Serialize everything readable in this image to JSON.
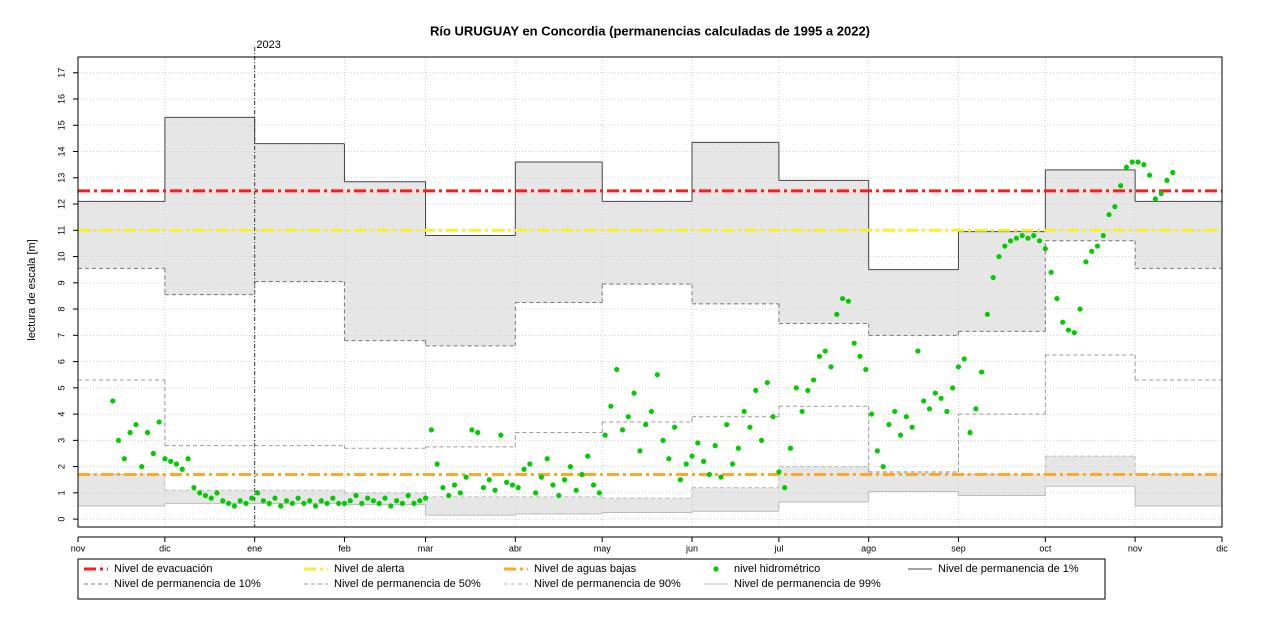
{
  "chart_data": {
    "type": "step",
    "title": "Río URUGUAY en Concordia (permanencias calculadas de 1995 a 2022)",
    "y_label": "lectura de escala [m]",
    "xlim": [
      0,
      395
    ],
    "ylim": [
      -0.3,
      17.6
    ],
    "xticks": [
      {
        "value": 0,
        "label": "nov"
      },
      {
        "value": 30,
        "label": "dic"
      },
      {
        "value": 61,
        "label": "ene"
      },
      {
        "value": 92,
        "label": "feb"
      },
      {
        "value": 120,
        "label": "mar"
      },
      {
        "value": 151,
        "label": "abr"
      },
      {
        "value": 181,
        "label": "may"
      },
      {
        "value": 212,
        "label": "jun"
      },
      {
        "value": 242,
        "label": "jul"
      },
      {
        "value": 273,
        "label": "ago"
      },
      {
        "value": 304,
        "label": "sep"
      },
      {
        "value": 334,
        "label": "oct"
      },
      {
        "value": 365,
        "label": "nov"
      },
      {
        "value": 395,
        "label": "dic"
      }
    ],
    "yticks": [
      0,
      1,
      2,
      3,
      4,
      5,
      6,
      7,
      8,
      9,
      10,
      11,
      12,
      13,
      14,
      15,
      16,
      17
    ],
    "grid": true,
    "vlines": [
      {
        "x": 61,
        "label": "2023"
      }
    ],
    "band_color": "#e6e6e6",
    "bands": [
      [
        4,
        5
      ],
      [
        7,
        8
      ]
    ],
    "series": [
      {
        "name": "Nivel de evacuación",
        "kind": "hline",
        "dash": "dashdot",
        "color": "#ff1a1a",
        "values": [
          12.5
        ]
      },
      {
        "name": "Nivel de alerta",
        "kind": "hline",
        "dash": "dashdot",
        "color": "#f5f032",
        "values": [
          11
        ]
      },
      {
        "name": "Nivel de aguas bajas",
        "kind": "hline",
        "dash": "dashdot",
        "color": "#ffa726",
        "values": [
          1.7
        ]
      },
      {
        "name": "nivel hidrométrico",
        "kind": "points",
        "color": "#00cc00",
        "x": [
          12,
          14,
          16,
          18,
          20,
          22,
          24,
          26,
          28,
          30,
          32,
          34,
          36,
          38,
          40,
          42,
          44,
          46,
          48,
          50,
          52,
          54,
          56,
          58,
          60,
          62,
          64,
          66,
          68,
          70,
          72,
          74,
          76,
          78,
          80,
          82,
          84,
          86,
          88,
          90,
          92,
          94,
          96,
          98,
          100,
          102,
          104,
          106,
          108,
          110,
          112,
          114,
          116,
          118,
          120,
          122,
          124,
          126,
          128,
          130,
          132,
          134,
          136,
          138,
          140,
          142,
          144,
          146,
          148,
          150,
          152,
          154,
          156,
          158,
          160,
          162,
          164,
          166,
          168,
          170,
          172,
          174,
          176,
          178,
          180,
          182,
          184,
          186,
          188,
          190,
          192,
          194,
          196,
          198,
          200,
          202,
          204,
          206,
          208,
          210,
          212,
          214,
          216,
          218,
          220,
          222,
          224,
          226,
          228,
          230,
          232,
          234,
          236,
          238,
          240,
          242,
          244,
          246,
          248,
          250,
          252,
          254,
          256,
          258,
          260,
          262,
          264,
          266,
          268,
          270,
          272,
          274,
          276,
          278,
          280,
          282,
          284,
          286,
          288,
          290,
          292,
          294,
          296,
          298,
          300,
          302,
          304,
          306,
          308,
          310,
          312,
          314,
          316,
          318,
          320,
          322,
          324,
          326,
          328,
          330,
          332,
          334,
          336,
          338,
          340,
          342,
          344,
          346,
          348,
          350,
          352,
          354,
          356,
          358,
          360,
          362,
          364,
          366,
          368,
          370,
          372,
          374,
          376,
          378
        ],
        "values": [
          4.5,
          3.0,
          2.3,
          3.3,
          3.6,
          2.0,
          3.3,
          2.5,
          3.7,
          2.3,
          2.2,
          2.1,
          1.9,
          2.3,
          1.2,
          1.0,
          0.9,
          0.8,
          1.0,
          0.7,
          0.6,
          0.5,
          0.7,
          0.6,
          0.8,
          1.0,
          0.7,
          0.6,
          0.8,
          0.5,
          0.7,
          0.6,
          0.8,
          0.6,
          0.7,
          0.5,
          0.7,
          0.6,
          0.8,
          0.6,
          0.6,
          0.7,
          0.9,
          0.6,
          0.8,
          0.7,
          0.6,
          0.8,
          0.5,
          0.7,
          0.6,
          0.9,
          0.6,
          0.7,
          0.8,
          3.4,
          2.1,
          1.2,
          0.9,
          1.3,
          1.0,
          1.6,
          3.4,
          3.3,
          1.2,
          1.5,
          1.1,
          3.2,
          1.4,
          1.3,
          1.2,
          1.9,
          2.1,
          1.0,
          1.6,
          2.3,
          1.3,
          0.9,
          1.5,
          2.0,
          1.1,
          1.7,
          2.4,
          1.3,
          1.0,
          3.2,
          4.3,
          5.7,
          3.4,
          3.9,
          4.8,
          2.6,
          3.6,
          4.1,
          5.5,
          3.0,
          2.3,
          3.5,
          1.5,
          2.1,
          2.4,
          2.9,
          2.2,
          1.7,
          2.8,
          1.6,
          3.6,
          2.1,
          2.7,
          4.1,
          3.5,
          4.9,
          3.0,
          5.2,
          3.9,
          1.8,
          1.2,
          2.7,
          5.0,
          4.1,
          4.9,
          5.3,
          6.2,
          6.4,
          5.8,
          7.8,
          8.4,
          8.3,
          6.7,
          6.2,
          5.7,
          4.0,
          2.6,
          2.0,
          3.6,
          4.1,
          3.2,
          3.9,
          3.5,
          6.4,
          4.5,
          4.2,
          4.8,
          4.6,
          4.1,
          5.0,
          5.8,
          6.1,
          3.3,
          4.2,
          5.6,
          7.8,
          9.2,
          10.0,
          10.4,
          10.6,
          10.7,
          10.8,
          10.7,
          10.8,
          10.6,
          10.3,
          9.4,
          8.4,
          7.5,
          7.2,
          7.1,
          8.0,
          9.8,
          10.2,
          10.4,
          10.8,
          11.6,
          11.9,
          12.7,
          13.4,
          13.6,
          13.6,
          13.5,
          13.1,
          12.2,
          12.4,
          12.9,
          13.2
        ]
      },
      {
        "name": "Nivel de permanencia de 1%",
        "kind": "step",
        "dash": "solid",
        "color": "#444444",
        "x": [
          0,
          30,
          61,
          92,
          120,
          151,
          181,
          212,
          242,
          273,
          304,
          334,
          365
        ],
        "values": [
          12.1,
          15.3,
          14.3,
          12.85,
          10.8,
          13.6,
          12.1,
          14.35,
          12.9,
          9.5,
          10.95,
          13.3,
          12.1
        ]
      },
      {
        "name": "Nivel de permanencia de 10%",
        "kind": "step",
        "dash": "dashed",
        "color": "#777777",
        "x": [
          0,
          30,
          61,
          92,
          120,
          151,
          181,
          212,
          242,
          273,
          304,
          334,
          365
        ],
        "values": [
          9.55,
          8.55,
          9.05,
          6.8,
          6.6,
          8.25,
          8.95,
          8.2,
          7.45,
          7.0,
          7.15,
          10.6,
          9.55
        ]
      },
      {
        "name": "Nivel de permanencia de 50%",
        "kind": "step",
        "dash": "dashed",
        "color": "#999999",
        "x": [
          0,
          30,
          61,
          92,
          120,
          151,
          181,
          212,
          242,
          273,
          304,
          334,
          365
        ],
        "values": [
          5.3,
          2.8,
          2.8,
          2.7,
          2.75,
          3.3,
          3.7,
          3.9,
          4.3,
          1.8,
          4.0,
          6.25,
          5.3
        ]
      },
      {
        "name": "Nivel de permanencia de 90%",
        "kind": "step",
        "dash": "dashed",
        "color": "#bbbbbb",
        "x": [
          0,
          30,
          61,
          92,
          120,
          151,
          181,
          212,
          242,
          273,
          304,
          334,
          365
        ],
        "values": [
          1.7,
          1.1,
          1.1,
          1.0,
          0.85,
          0.85,
          0.8,
          1.2,
          2.0,
          1.75,
          1.7,
          2.4,
          1.7
        ]
      },
      {
        "name": "Nivel de permanencia de 99%",
        "kind": "step",
        "dash": "solid",
        "color": "#bbbbbb",
        "x": [
          0,
          30,
          61,
          92,
          120,
          151,
          181,
          212,
          242,
          273,
          304,
          334,
          365
        ],
        "values": [
          0.5,
          0.6,
          0.6,
          0.55,
          0.15,
          0.2,
          0.25,
          0.3,
          0.65,
          1.05,
          0.9,
          1.25,
          0.5
        ]
      }
    ]
  }
}
